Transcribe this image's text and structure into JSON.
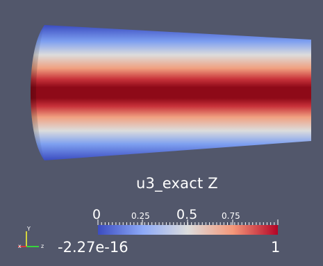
{
  "colorbar": {
    "title": "u3_exact Z",
    "ticks": [
      "0",
      "0.25",
      "0.5",
      "0.75"
    ],
    "range_min": "-2.27e-16",
    "range_max": "1",
    "colormap": [
      "#3b4cc0",
      "#dddddd",
      "#b40426"
    ]
  },
  "orientation_axes": {
    "x_label": "x",
    "y_label": "Y",
    "z_label": "z",
    "x_color": "#ff3030",
    "y_color": "#ffff30",
    "z_color": "#30ff30"
  },
  "background_color": "#52576b",
  "field_colors": {
    "low": "#3b4cc0",
    "mid": "#dddddd",
    "high": "#8b0010"
  }
}
